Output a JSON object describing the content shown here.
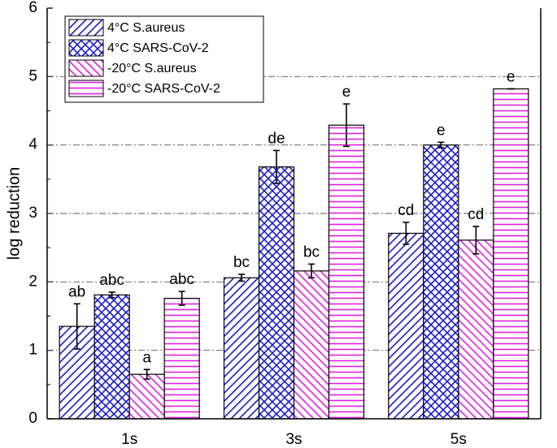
{
  "chart_data": {
    "type": "bar",
    "y_label": "log reduction",
    "categories": [
      "1s",
      "3s",
      "5s"
    ],
    "series": [
      {
        "name": "4°C S.aureus",
        "color": "#1c1cc8",
        "hatch": "/",
        "values": [
          1.35,
          2.06,
          2.71
        ],
        "errors": [
          0.33,
          0.05,
          0.16
        ],
        "labels": [
          "ab",
          "bc",
          "cd"
        ]
      },
      {
        "name": "4°C SARS-CoV-2",
        "color": "#1c1cc8",
        "hatch": "x",
        "values": [
          1.81,
          3.68,
          4.0
        ],
        "errors": [
          0.04,
          0.24,
          0.04
        ],
        "labels": [
          "abc",
          "de",
          "e"
        ]
      },
      {
        "name": "-20°C  S.aureus",
        "color": "#e020e0",
        "hatch": "\\",
        "values": [
          0.65,
          2.16,
          2.61
        ],
        "errors": [
          0.07,
          0.1,
          0.2
        ],
        "labels": [
          "a",
          "bc",
          "cd"
        ]
      },
      {
        "name": "-20°C  SARS-CoV-2",
        "color": "#e020e0",
        "hatch": "-",
        "values": [
          1.76,
          4.29,
          4.82
        ],
        "errors": [
          0.1,
          0.31,
          0
        ],
        "labels": [
          "abc",
          "e",
          "e"
        ]
      }
    ],
    "ylim": [
      0,
      6
    ],
    "yticks": [
      0,
      1,
      2,
      3,
      4,
      5,
      6
    ],
    "grid": true,
    "legend": "upper-left"
  }
}
